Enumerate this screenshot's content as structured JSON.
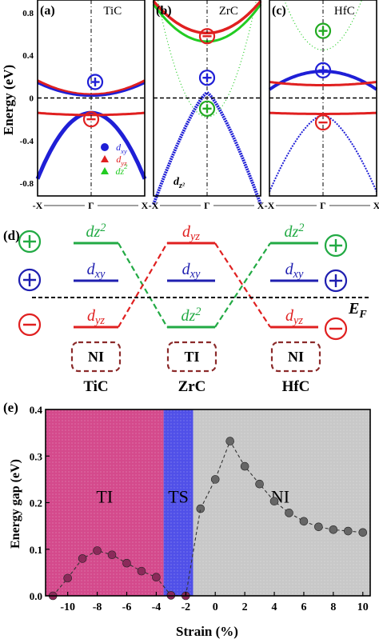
{
  "panels_top": [
    {
      "tag": "(a)",
      "material": "TiC"
    },
    {
      "tag": "(b)",
      "material": "ZrC"
    },
    {
      "tag": "(c)",
      "material": "HfC"
    }
  ],
  "top_axis": {
    "ylabel": "Energy (eV)",
    "yticks": [
      "0.8",
      "0.4",
      "0",
      "-0.4",
      "-0.8"
    ],
    "kpath": [
      "-X",
      "Γ",
      "X"
    ],
    "ylim": [
      -0.92,
      0.92
    ]
  },
  "legend_a": {
    "entries": [
      {
        "sym": "d",
        "sub": "xy",
        "color": "#1f1fd6"
      },
      {
        "sym": "d",
        "sub": "yz",
        "color": "#e02020"
      },
      {
        "sym": "dz",
        "sup": "2",
        "color": "#22cc22"
      }
    ]
  },
  "annotation_b": {
    "sym": "d",
    "sub": "z²"
  },
  "panel_d": {
    "tag": "(d)",
    "fermi": {
      "sym": "E",
      "sub": "F"
    },
    "materials": [
      "TiC",
      "ZrC",
      "HfC"
    ],
    "phases": [
      "NI",
      "TI",
      "NI"
    ],
    "columns": [
      {
        "levels": [
          {
            "sym": "dz",
            "sup": "2",
            "color": "#22aa44"
          },
          {
            "sym": "d",
            "sub": "xy",
            "color": "#1f1fb0"
          },
          {
            "sym": "d",
            "sub": "yz",
            "color": "#e02020"
          }
        ]
      },
      {
        "levels": [
          {
            "sym": "d",
            "sub": "yz",
            "color": "#e02020"
          },
          {
            "sym": "d",
            "sub": "xy",
            "color": "#1f1fb0"
          },
          {
            "sym": "dz",
            "sup": "2",
            "color": "#22aa44"
          }
        ]
      },
      {
        "levels": [
          {
            "sym": "dz",
            "sup": "2",
            "color": "#22aa44"
          },
          {
            "sym": "d",
            "sub": "xy",
            "color": "#1f1fb0"
          },
          {
            "sym": "d",
            "sub": "yz",
            "color": "#e02020"
          }
        ]
      }
    ]
  },
  "chart_data": {
    "type": "scatter",
    "tag": "(e)",
    "xlabel": "Strain (%)",
    "ylabel": "Energy gap (eV)",
    "xlim": [
      -11.5,
      10.5
    ],
    "ylim": [
      0,
      0.4
    ],
    "xticks": [
      -10,
      -8,
      -6,
      -4,
      -2,
      0,
      2,
      4,
      6,
      8,
      10
    ],
    "yticks": [
      0.0,
      0.1,
      0.2,
      0.3,
      0.4
    ],
    "regions": [
      {
        "label": "TI",
        "from": -11.5,
        "to": -3.5,
        "color": "#d44a8c"
      },
      {
        "label": "TS",
        "from": -3.5,
        "to": -1.5,
        "color": "#5050e8"
      },
      {
        "label": "NI",
        "from": -1.5,
        "to": 10.5,
        "color": "#c8c8c8"
      }
    ],
    "series": [
      {
        "color": "#8b2a5a",
        "x": [
          -11,
          -10,
          -9,
          -8,
          -7,
          -6,
          -5,
          -4,
          -3,
          -2
        ],
        "y": [
          0.0,
          0.038,
          0.08,
          0.097,
          0.088,
          0.07,
          0.053,
          0.04,
          0.001,
          0.0
        ]
      },
      {
        "color": "#666666",
        "x": [
          -1,
          0,
          1,
          2,
          3,
          4,
          5,
          6,
          7,
          8,
          9,
          10
        ],
        "y": [
          0.187,
          0.25,
          0.332,
          0.278,
          0.24,
          0.203,
          0.178,
          0.16,
          0.148,
          0.142,
          0.139,
          0.136
        ]
      }
    ]
  }
}
